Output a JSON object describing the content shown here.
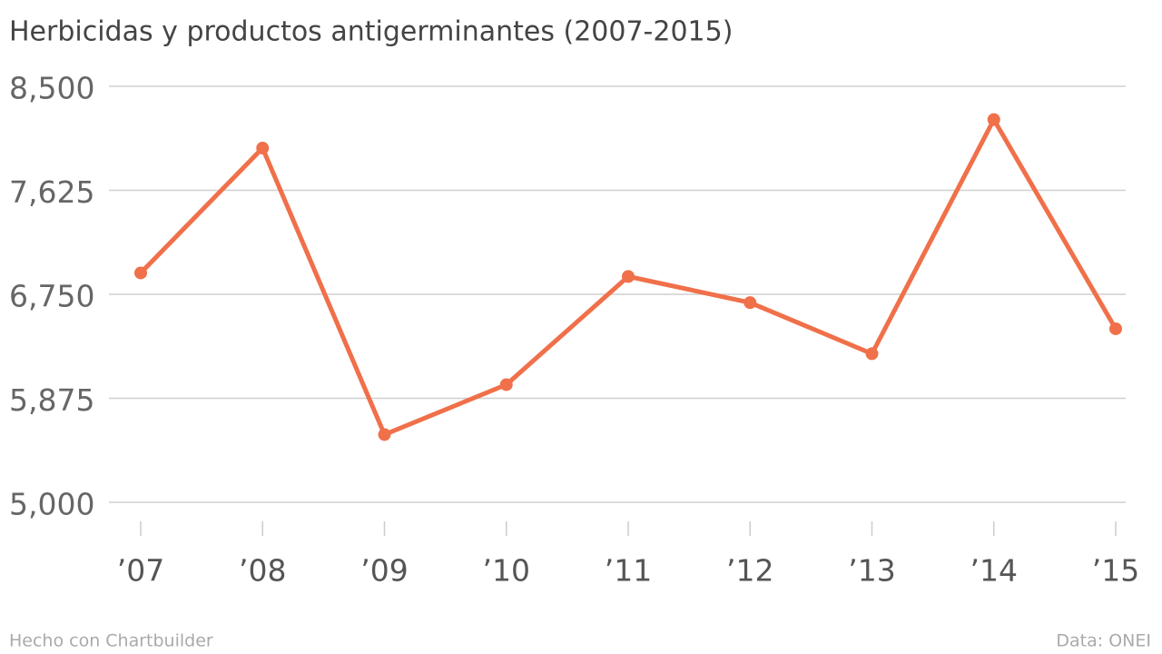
{
  "chart_data": {
    "type": "line",
    "title": "Herbicidas y productos antigerminantes (2007-2015)",
    "categories": [
      "’07",
      "’08",
      "’09",
      "’10",
      "’11",
      "’12",
      "’13",
      "’14",
      "’15"
    ],
    "series": [
      {
        "name": "Herbicidas y productos antigerminantes",
        "color": "#f0704a",
        "values": [
          6930,
          7980,
          5570,
          5990,
          6900,
          6680,
          6250,
          8220,
          6460
        ]
      }
    ],
    "ylim": [
      5000,
      8500
    ],
    "yticks": [
      {
        "value": 5000,
        "label": "5,000"
      },
      {
        "value": 5875,
        "label": "5,875"
      },
      {
        "value": 6750,
        "label": "6,750"
      },
      {
        "value": 7625,
        "label": "7,625"
      },
      {
        "value": 8500,
        "label": "8,500"
      }
    ],
    "grid": true,
    "footer_left": "Hecho con Chartbuilder",
    "footer_right": "Data: ONEI"
  }
}
